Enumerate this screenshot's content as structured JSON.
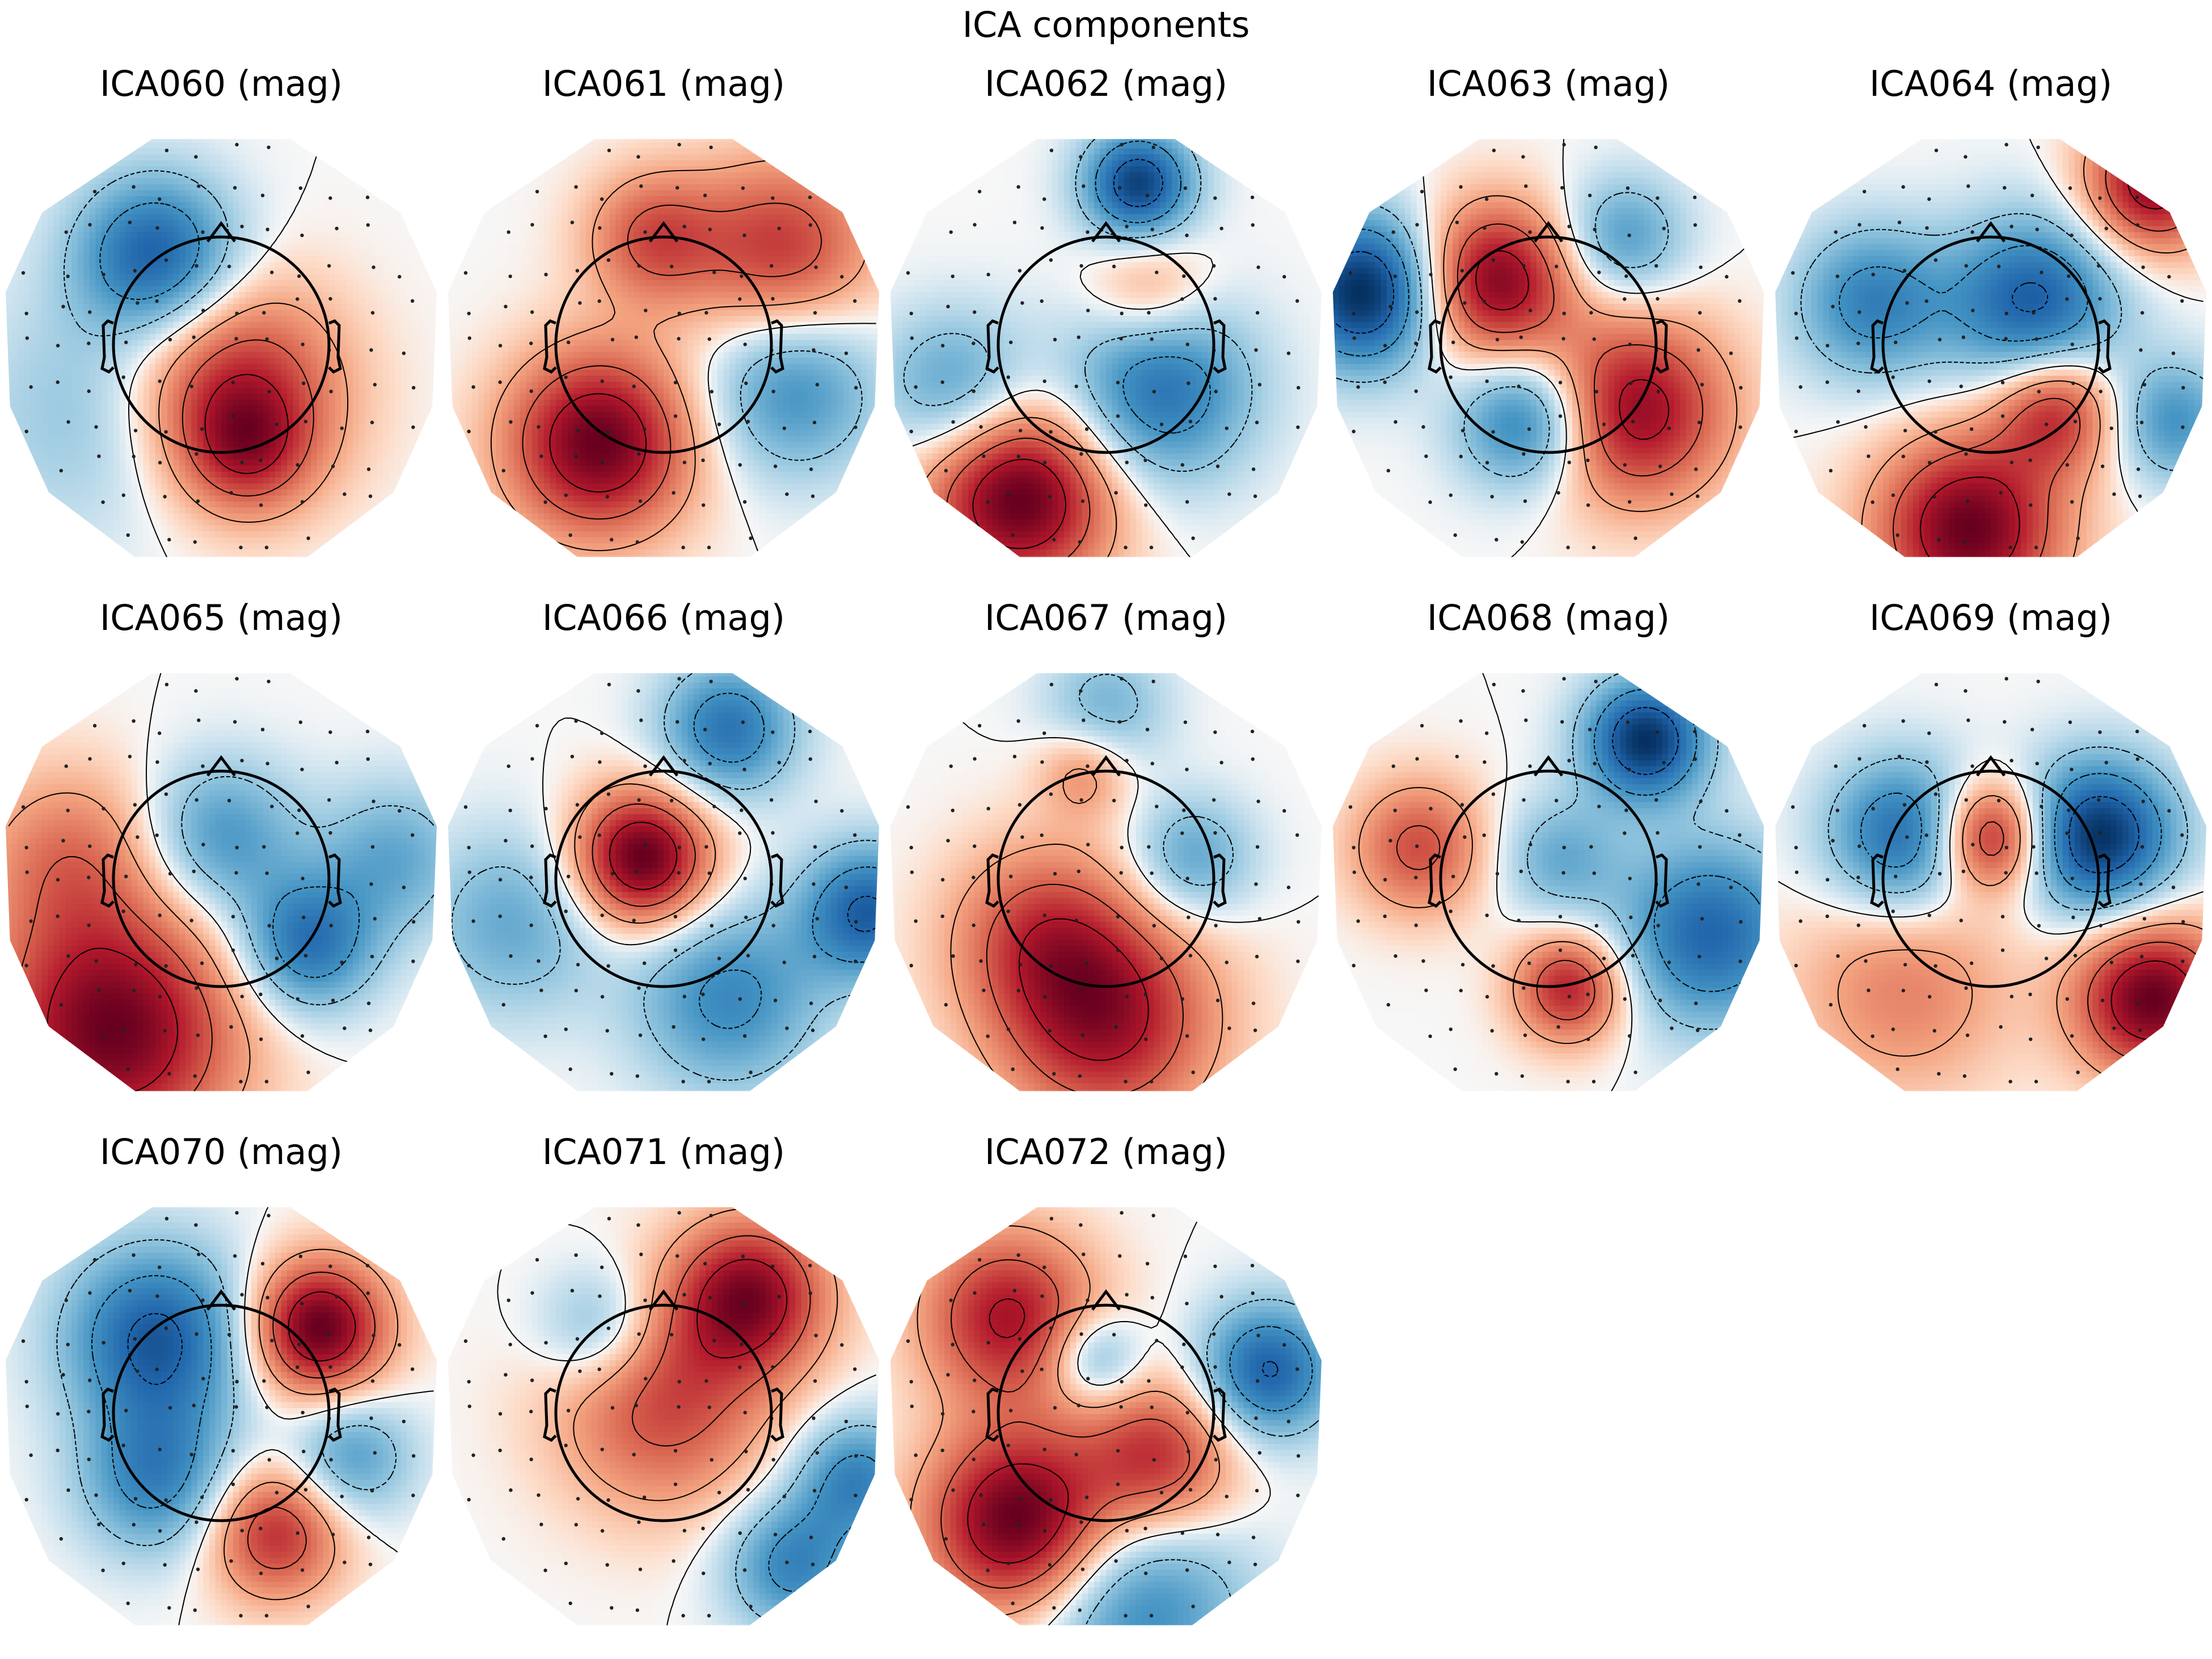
{
  "figure_title": "ICA components",
  "components": [
    {
      "title": "ICA060 (mag)",
      "blobs": [
        [
          0.05,
          0.22,
          0.9,
          0.35
        ],
        [
          -0.3,
          -0.42,
          -0.9,
          0.26
        ],
        [
          0.12,
          0.48,
          0.5,
          0.2
        ],
        [
          -0.55,
          0.3,
          -0.35,
          0.4
        ]
      ]
    },
    {
      "title": "ICA061 (mag)",
      "blobs": [
        [
          -0.3,
          0.45,
          0.95,
          0.3
        ],
        [
          0.55,
          -0.45,
          0.6,
          0.3
        ],
        [
          -0.05,
          -0.5,
          0.5,
          0.22
        ],
        [
          0.6,
          0.2,
          -0.5,
          0.28
        ]
      ]
    },
    {
      "title": "ICA062 (mag)",
      "blobs": [
        [
          -0.4,
          0.7,
          0.9,
          0.3
        ],
        [
          0.15,
          -0.75,
          -0.8,
          0.18
        ],
        [
          0.25,
          0.2,
          -0.6,
          0.3
        ],
        [
          -0.7,
          0.2,
          -0.4,
          0.25
        ],
        [
          0.2,
          -0.25,
          0.3,
          0.2
        ]
      ]
    },
    {
      "title": "ICA063 (mag)",
      "blobs": [
        [
          -0.85,
          -0.25,
          -0.9,
          0.25
        ],
        [
          -0.25,
          -0.3,
          0.8,
          0.25
        ],
        [
          0.4,
          0.3,
          0.75,
          0.3
        ],
        [
          -0.1,
          0.35,
          -0.6,
          0.22
        ],
        [
          0.35,
          -0.5,
          -0.4,
          0.2
        ]
      ]
    },
    {
      "title": "ICA064 (mag)",
      "blobs": [
        [
          -0.1,
          0.85,
          1.0,
          0.3
        ],
        [
          0.75,
          -0.75,
          0.9,
          0.22
        ],
        [
          0.2,
          -0.2,
          -0.8,
          0.28
        ],
        [
          -0.55,
          -0.2,
          -0.6,
          0.25
        ],
        [
          0.3,
          0.3,
          0.7,
          0.2
        ],
        [
          0.85,
          0.35,
          -0.5,
          0.2
        ]
      ]
    },
    {
      "title": "ICA065 (mag)",
      "blobs": [
        [
          -0.5,
          0.7,
          1.0,
          0.4
        ],
        [
          0.4,
          0.3,
          -0.7,
          0.22
        ],
        [
          0.0,
          -0.2,
          -0.5,
          0.25
        ],
        [
          -0.7,
          -0.1,
          0.4,
          0.3
        ],
        [
          0.8,
          -0.1,
          -0.4,
          0.25
        ]
      ]
    },
    {
      "title": "ICA066 (mag)",
      "blobs": [
        [
          -0.1,
          -0.1,
          0.95,
          0.22
        ],
        [
          0.95,
          0.15,
          -0.7,
          0.22
        ],
        [
          0.3,
          0.55,
          -0.5,
          0.3
        ],
        [
          0.3,
          -0.7,
          -0.6,
          0.22
        ],
        [
          -0.7,
          0.2,
          -0.35,
          0.3
        ]
      ]
    },
    {
      "title": "ICA067 (mag)",
      "blobs": [
        [
          0.0,
          0.65,
          0.95,
          0.35
        ],
        [
          -0.3,
          0.25,
          0.6,
          0.3
        ],
        [
          0.4,
          -0.1,
          -0.5,
          0.2
        ],
        [
          0.0,
          -0.8,
          -0.4,
          0.2
        ],
        [
          -0.1,
          -0.5,
          0.4,
          0.15
        ]
      ]
    },
    {
      "title": "ICA068 (mag)",
      "blobs": [
        [
          0.45,
          -0.65,
          -0.8,
          0.2
        ],
        [
          0.75,
          0.25,
          -0.6,
          0.3
        ],
        [
          0.1,
          0.5,
          0.6,
          0.18
        ],
        [
          -0.6,
          -0.15,
          0.45,
          0.22
        ],
        [
          0.05,
          -0.1,
          -0.3,
          0.2
        ]
      ]
    },
    {
      "title": "ICA069 (mag)",
      "blobs": [
        [
          0.5,
          -0.2,
          -0.8,
          0.25
        ],
        [
          -0.4,
          -0.2,
          -0.6,
          0.25
        ],
        [
          0.0,
          -0.2,
          0.7,
          0.18
        ],
        [
          0.75,
          0.55,
          0.8,
          0.25
        ],
        [
          -0.4,
          0.5,
          0.3,
          0.35
        ]
      ]
    },
    {
      "title": "ICA070 (mag)",
      "blobs": [
        [
          0.45,
          -0.4,
          0.9,
          0.22
        ],
        [
          -0.3,
          -0.35,
          -0.7,
          0.3
        ],
        [
          0.25,
          0.55,
          0.6,
          0.22
        ],
        [
          -0.3,
          0.3,
          -0.5,
          0.25
        ],
        [
          0.6,
          0.2,
          -0.4,
          0.2
        ]
      ]
    },
    {
      "title": "ICA071 (mag)",
      "blobs": [
        [
          0.4,
          -0.55,
          0.9,
          0.25
        ],
        [
          0.0,
          -0.05,
          0.6,
          0.35
        ],
        [
          0.6,
          0.7,
          -0.6,
          0.22
        ],
        [
          0.9,
          0.3,
          -0.6,
          0.2
        ],
        [
          -0.3,
          -0.4,
          -0.4,
          0.2
        ]
      ]
    },
    {
      "title": "ICA072 (mag)",
      "blobs": [
        [
          -0.4,
          0.5,
          0.95,
          0.3
        ],
        [
          -0.45,
          -0.45,
          0.7,
          0.28
        ],
        [
          0.25,
          0.2,
          0.6,
          0.25
        ],
        [
          0.75,
          -0.2,
          -0.7,
          0.22
        ],
        [
          0.15,
          0.9,
          -0.5,
          0.35
        ],
        [
          -0.05,
          -0.25,
          -0.4,
          0.15
        ]
      ]
    }
  ]
}
